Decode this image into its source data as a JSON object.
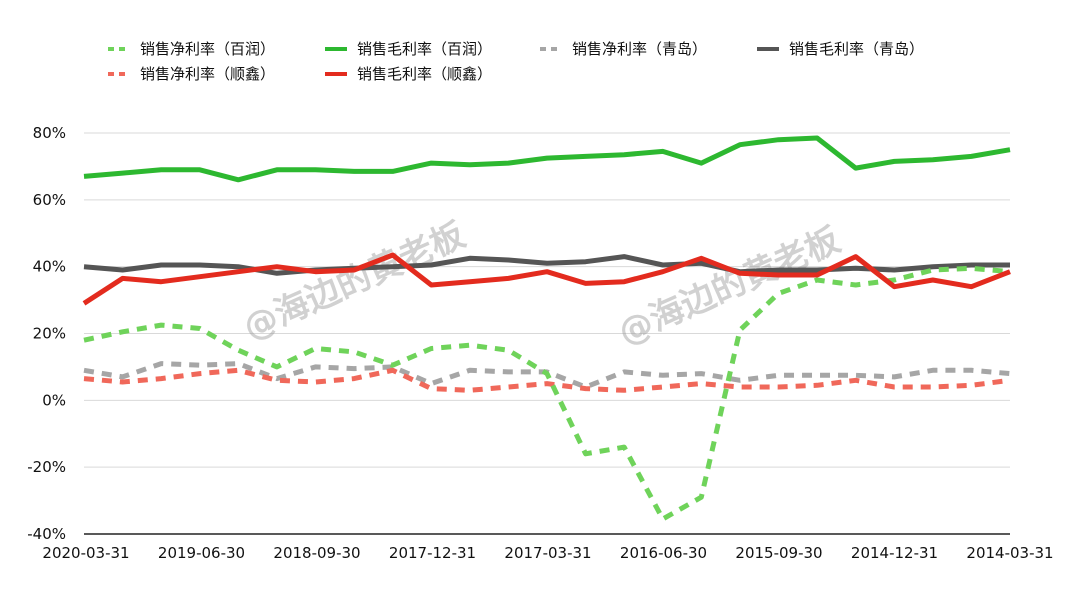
{
  "chart_data": {
    "type": "line",
    "ylim": [
      -40,
      80
    ],
    "y_ticks": [
      "-40%",
      "-20%",
      "0%",
      "20%",
      "40%",
      "60%",
      "80%"
    ],
    "y_tick_values": [
      -40,
      -20,
      0,
      20,
      40,
      60,
      80
    ],
    "grid": true,
    "legend_position": "top",
    "x_labels": [
      "2020-03-31",
      "2019-06-30",
      "2018-09-30",
      "2017-12-31",
      "2017-03-31",
      "2016-06-30",
      "2015-09-30",
      "2014-12-31",
      "2014-03-31"
    ],
    "watermark": "@海边的黄老板",
    "series": [
      {
        "name": "销售净利率（百润）",
        "color": "#6fd35a",
        "dashed": true,
        "values": [
          18,
          20.5,
          22.5,
          21.5,
          15,
          10,
          15.5,
          14.5,
          10.5,
          15.5,
          16.5,
          15,
          8,
          -16,
          -14,
          -35.5,
          -29,
          21,
          32,
          36,
          34.5,
          36,
          39,
          39.5,
          38.5
        ]
      },
      {
        "name": "销售毛利率（百润）",
        "color": "#2db830",
        "dashed": false,
        "values": [
          67,
          68,
          69,
          69,
          66,
          69,
          69,
          68.5,
          68.5,
          71,
          70.5,
          71,
          72.5,
          73,
          73.5,
          74.5,
          71,
          76.5,
          78,
          78.5,
          69.5,
          71.5,
          72,
          73,
          75
        ]
      },
      {
        "name": "销售净利率（青岛）",
        "color": "#a6a6a6",
        "dashed": true,
        "values": [
          9,
          7,
          11,
          10.5,
          11,
          6.5,
          10,
          9.5,
          10,
          5,
          9,
          8.5,
          8.5,
          4,
          8.5,
          7.5,
          8,
          6,
          7.5,
          7.5,
          7.5,
          7,
          9,
          9,
          8
        ]
      },
      {
        "name": "销售毛利率（青岛）",
        "color": "#555555",
        "dashed": false,
        "values": [
          40,
          39,
          40.5,
          40.5,
          40,
          38,
          39,
          39.5,
          40,
          40.5,
          42.5,
          42,
          41,
          41.5,
          43,
          40.5,
          41,
          38.5,
          39,
          39,
          39.5,
          39,
          40,
          40.5,
          40.5
        ]
      },
      {
        "name": "销售净利率（顺鑫）",
        "color": "#f0685a",
        "dashed": true,
        "values": [
          6.5,
          5.5,
          6.5,
          8,
          9,
          6,
          5.5,
          6.5,
          9,
          3.5,
          3,
          4,
          5,
          3.5,
          3,
          4,
          5,
          4,
          4,
          4.5,
          6,
          4,
          4,
          4.5,
          6
        ]
      },
      {
        "name": "销售毛利率（顺鑫）",
        "color": "#e32b1e",
        "dashed": false,
        "values": [
          29,
          36.5,
          35.5,
          37,
          38.5,
          40,
          38.5,
          39,
          43.5,
          34.5,
          35.5,
          36.5,
          38.5,
          35,
          35.5,
          38.5,
          42.5,
          38,
          37.5,
          37.5,
          43,
          34,
          36,
          34,
          38.5
        ]
      }
    ]
  }
}
